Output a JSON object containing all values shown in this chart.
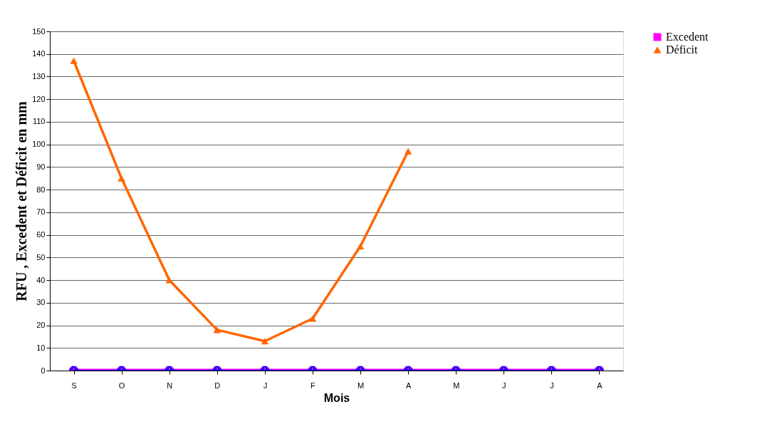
{
  "chart_data": {
    "type": "line",
    "ylabel": "RFU , Excedent et Déficit en mm",
    "xlabel": "Mois",
    "categories": [
      "S",
      "O",
      "N",
      "D",
      "J",
      "F",
      "M",
      "A",
      "M",
      "J",
      "J",
      "A"
    ],
    "series": [
      {
        "name": "Excedent",
        "color": "#ff00ff",
        "marker": "square",
        "values": [
          0,
          0,
          0,
          0,
          0,
          0,
          0,
          0,
          0,
          0,
          0,
          0
        ]
      },
      {
        "name": "Déficit",
        "color": "#ff6600",
        "marker": "triangle",
        "values": [
          137,
          85,
          40,
          18,
          13,
          23,
          55,
          97,
          null,
          null,
          null,
          null
        ]
      },
      {
        "color": "#0000ff",
        "marker": "cross",
        "values": [
          0,
          0,
          0,
          0,
          0,
          0,
          0,
          0,
          0,
          0,
          0,
          0
        ]
      }
    ],
    "ylim": [
      0,
      150
    ],
    "yticks": [
      0,
      10,
      20,
      30,
      40,
      50,
      60,
      70,
      80,
      90,
      100,
      110,
      120,
      130,
      140,
      150
    ],
    "grid": "y",
    "legend": "right",
    "line_style": "solid"
  }
}
